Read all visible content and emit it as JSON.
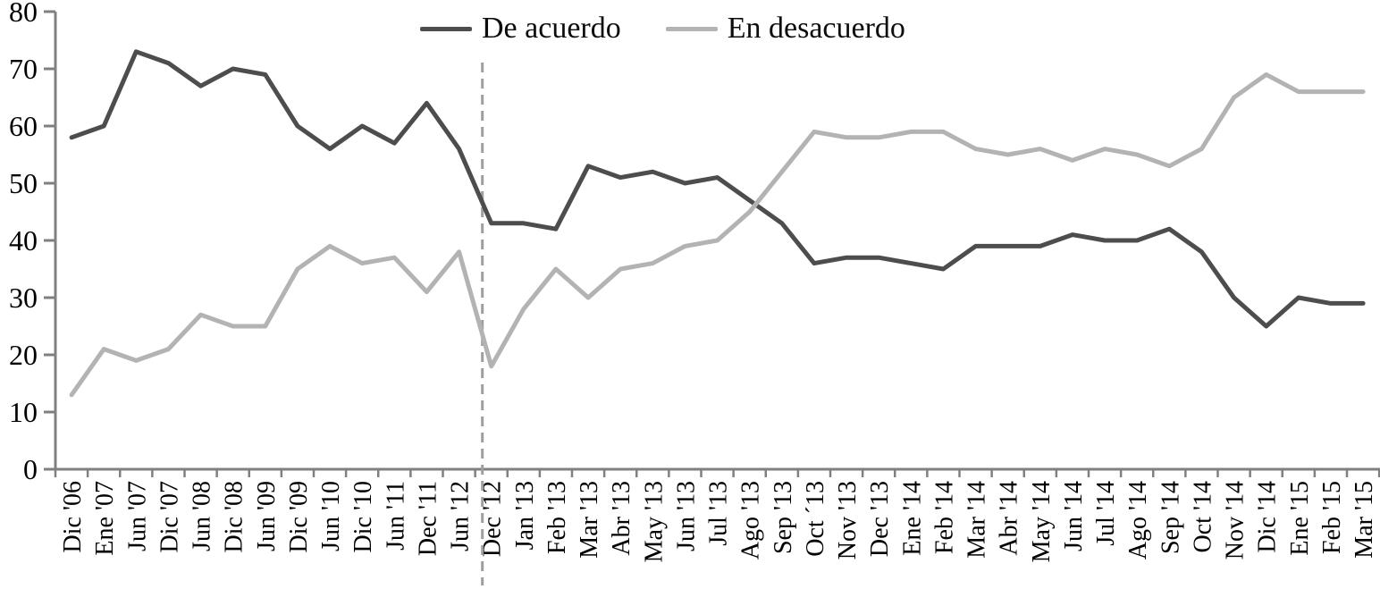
{
  "chart_data": {
    "type": "line",
    "title": "",
    "xlabel": "",
    "ylabel": "",
    "ylim": [
      0,
      80
    ],
    "yticks": [
      0,
      10,
      20,
      30,
      40,
      50,
      60,
      70,
      80
    ],
    "grid": false,
    "legend_position": "top-center",
    "categories": [
      "Dic '06",
      "Ene '07",
      "Jun '07",
      "Dic '07",
      "Jun '08",
      "Dic '08",
      "Jun '09",
      "Dic '09",
      "Jun '10",
      "Dic '10",
      "Jun '11",
      "Dec '11",
      "Jun '12",
      "Dec '12",
      "Jan '13",
      "Feb '13",
      "Mar '13",
      "Abr '13",
      "May '13",
      "Jun '13",
      "Jul '13",
      "Ago '13",
      "Sep '13",
      "Oct ´13",
      "Nov '13",
      "Dec '13",
      "Ene '14",
      "Feb '14",
      "Mar '14",
      "Abr '14",
      "May '14",
      "Jun '14",
      "Jul '14",
      "Ago '14",
      "Sep '14",
      "Oct '14",
      "Nov '14",
      "Dic '14",
      "Ene '15",
      "Feb '15",
      "Mar '15"
    ],
    "series": [
      {
        "name": "De acuerdo",
        "color": "#4d4d4d",
        "values": [
          58,
          60,
          73,
          71,
          67,
          70,
          69,
          60,
          56,
          60,
          57,
          64,
          56,
          43,
          43,
          42,
          53,
          51,
          52,
          50,
          51,
          47,
          43,
          36,
          37,
          37,
          36,
          35,
          39,
          39,
          39,
          41,
          40,
          40,
          42,
          38,
          30,
          25,
          30,
          29,
          29
        ]
      },
      {
        "name": "En desacuerdo",
        "color": "#b3b3b3",
        "values": [
          13,
          21,
          19,
          21,
          27,
          25,
          25,
          35,
          39,
          36,
          37,
          31,
          38,
          18,
          28,
          35,
          30,
          35,
          36,
          39,
          40,
          45,
          52,
          59,
          58,
          58,
          59,
          59,
          56,
          55,
          56,
          54,
          56,
          55,
          53,
          56,
          65,
          69,
          66,
          66,
          66
        ]
      }
    ],
    "annotations": [
      {
        "type": "vertical-dashed-line",
        "at_category": "Dec '12",
        "color": "#9e9e9e"
      }
    ],
    "axis_color": "#808080",
    "text_color": "#000000"
  }
}
